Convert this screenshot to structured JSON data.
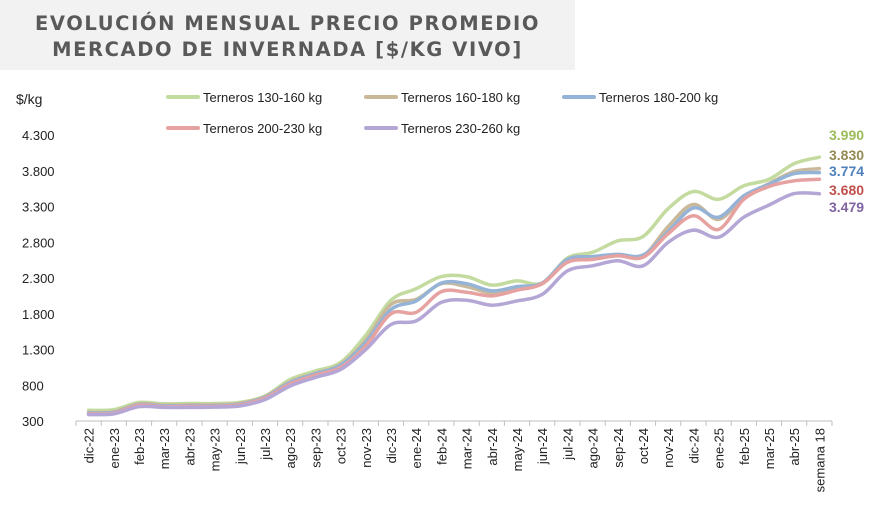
{
  "title_line1": "EVOLUCIÓN MENSUAL PRECIO PROMEDIO",
  "title_line2": "MERCADO DE INVERNADA [$/KG VIVO]",
  "chart_data": {
    "type": "line",
    "ylabel": "$/kg",
    "ylim": [
      300,
      4300
    ],
    "yticks": [
      "4.300",
      "3.800",
      "3.300",
      "2.800",
      "2.300",
      "1.800",
      "1.300",
      "800",
      "300"
    ],
    "categories": [
      "dic-22",
      "ene-23",
      "feb-23",
      "mar-23",
      "abr-23",
      "may-23",
      "jun-23",
      "jul-23",
      "ago-23",
      "sep-23",
      "oct-23",
      "nov-23",
      "dic-23",
      "ene-24",
      "feb-24",
      "mar-24",
      "abr-24",
      "may-24",
      "jun-24",
      "jul-24",
      "ago-24",
      "sep-24",
      "oct-24",
      "nov-24",
      "dic-24",
      "ene-25",
      "feb-25",
      "mar-25",
      "abr-25",
      "semana 18"
    ],
    "grid": false,
    "legend_position": "top",
    "series": [
      {
        "name": "Terneros 130-160 kg",
        "color": "#c4dba0",
        "label_color": "#9bbb59",
        "end_label": "3.990",
        "values": [
          450,
          460,
          560,
          540,
          545,
          545,
          560,
          650,
          880,
          1000,
          1120,
          1500,
          1990,
          2150,
          2320,
          2320,
          2200,
          2260,
          2230,
          2580,
          2660,
          2820,
          2880,
          3270,
          3510,
          3400,
          3590,
          3680,
          3900,
          3990
        ]
      },
      {
        "name": "Terneros 160-180 kg",
        "color": "#c9b99a",
        "label_color": "#948a54",
        "end_label": "3.830",
        "values": [
          420,
          430,
          540,
          520,
          525,
          525,
          545,
          640,
          850,
          970,
          1090,
          1430,
          1930,
          2000,
          2220,
          2180,
          2090,
          2150,
          2220,
          2530,
          2570,
          2620,
          2610,
          3020,
          3330,
          3120,
          3430,
          3620,
          3790,
          3830
        ]
      },
      {
        "name": "Terneros 180-200 kg",
        "color": "#95b3d7",
        "label_color": "#4f81bd",
        "end_label": "3.774",
        "values": [
          410,
          420,
          530,
          510,
          515,
          515,
          535,
          630,
          840,
          960,
          1080,
          1400,
          1860,
          1980,
          2230,
          2220,
          2120,
          2180,
          2230,
          2560,
          2600,
          2630,
          2620,
          2950,
          3280,
          3150,
          3450,
          3610,
          3760,
          3774
        ]
      },
      {
        "name": "Terneros 200-230 kg",
        "color": "#e6a2a0",
        "label_color": "#c0504d",
        "end_label": "3.680",
        "values": [
          400,
          410,
          520,
          500,
          505,
          505,
          525,
          620,
          820,
          940,
          1050,
          1350,
          1800,
          1820,
          2110,
          2100,
          2050,
          2130,
          2220,
          2520,
          2560,
          2610,
          2590,
          2920,
          3170,
          2980,
          3400,
          3580,
          3660,
          3680
        ]
      },
      {
        "name": "Terneros 230-260 kg",
        "color": "#b4a7d6",
        "label_color": "#8064a2",
        "end_label": "3.479",
        "values": [
          390,
          400,
          500,
          490,
          490,
          495,
          510,
          600,
          790,
          910,
          1020,
          1300,
          1650,
          1700,
          1960,
          1990,
          1920,
          1980,
          2070,
          2400,
          2470,
          2540,
          2470,
          2800,
          2970,
          2870,
          3150,
          3320,
          3480,
          3479
        ]
      }
    ]
  }
}
